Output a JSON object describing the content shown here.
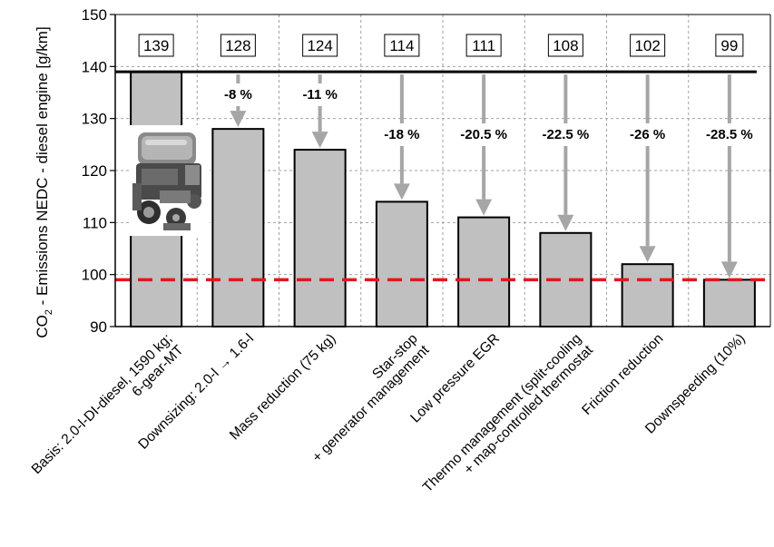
{
  "chart_data": {
    "type": "bar",
    "title": "",
    "ylabel_parts": [
      "CO",
      "2",
      " - Emissions NEDC - diesel engine [g/km]"
    ],
    "ylim": [
      90,
      150
    ],
    "yticks": [
      90,
      100,
      110,
      120,
      130,
      140,
      150
    ],
    "grid": "dashed vertical and horizontal",
    "categories": [
      [
        "Basis: 2.0-l-DI-diesel, 1590 kg;",
        "6-gear-MT"
      ],
      [
        "Downsizing: 2.0-l  →  1.6-l"
      ],
      [
        "Mass reduction (75 kg)"
      ],
      [
        "Star-stop",
        "+ generator management"
      ],
      [
        "Low pressure EGR"
      ],
      [
        "Thermo management (split-cooling",
        "+ map-controlled thermostat"
      ],
      [
        "Friction reduction"
      ],
      [
        "Downspeeding (10%)"
      ]
    ],
    "values": [
      139,
      128,
      124,
      114,
      111,
      108,
      102,
      99
    ],
    "value_labels": [
      "139",
      "128",
      "124",
      "114",
      "111",
      "108",
      "102",
      "99"
    ],
    "reduction_labels": [
      "",
      "-8 %",
      "-11 %",
      "-18 %",
      "-20.5 %",
      "-22.5 %",
      "-26 %",
      "-28.5 %"
    ],
    "baseline_line": 139,
    "target_line": 99,
    "colors": {
      "bar_fill": "#c0c0c0",
      "bar_stroke": "#000000",
      "arrow": "#a6a6a6",
      "baseline": "#000000",
      "target": "#e8141c",
      "grid": "#a0a0a0"
    },
    "image": "engine-photo"
  }
}
